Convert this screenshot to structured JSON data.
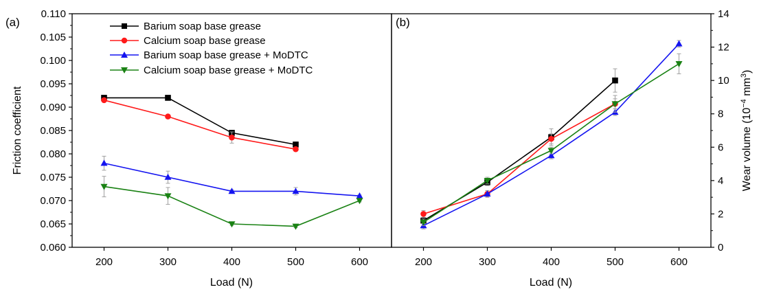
{
  "colors": {
    "barium": "#000000",
    "calcium": "#ff1a1a",
    "barium_modtc": "#1414f0",
    "calcium_modtc": "#1a8214",
    "errorbar": "#a0a0a0",
    "axis": "#000000"
  },
  "chart_data": [
    {
      "panel": "(a)",
      "type": "line",
      "xlabel": "Load (N)",
      "ylabel": "Friction coefficient",
      "xlim": [
        150,
        650
      ],
      "ylim": [
        0.06,
        0.11
      ],
      "xticks": [
        "200",
        "300",
        "400",
        "500",
        "600"
      ],
      "yticks": [
        "0.060",
        "0.065",
        "0.070",
        "0.075",
        "0.080",
        "0.085",
        "0.090",
        "0.095",
        "0.100",
        "0.105",
        "0.110"
      ],
      "legend_position": "top",
      "series": [
        {
          "name": "Barium soap base grease",
          "color_key": "barium",
          "marker": "square",
          "x": [
            200,
            300,
            400,
            500
          ],
          "y": [
            0.092,
            0.092,
            0.0845,
            0.082
          ],
          "err": [
            0.0003,
            0.0003,
            0.0004,
            0.0004
          ]
        },
        {
          "name": "Calcium soap base grease",
          "color_key": "calcium",
          "marker": "circle",
          "x": [
            200,
            300,
            400,
            500
          ],
          "y": [
            0.0915,
            0.088,
            0.0835,
            0.081
          ],
          "err": [
            0.0003,
            0.0003,
            0.0012,
            0.0003
          ]
        },
        {
          "name": "Barium soap base grease + MoDTC",
          "color_key": "barium_modtc",
          "marker": "triangle-up",
          "x": [
            200,
            300,
            400,
            500,
            600
          ],
          "y": [
            0.078,
            0.075,
            0.072,
            0.072,
            0.071
          ],
          "err": [
            0.0015,
            0.0013,
            0.0003,
            0.0008,
            0.0002
          ]
        },
        {
          "name": "Calcium soap base grease + MoDTC",
          "color_key": "calcium_modtc",
          "marker": "triangle-down",
          "x": [
            200,
            300,
            400,
            500,
            600
          ],
          "y": [
            0.073,
            0.071,
            0.065,
            0.0645,
            0.07
          ],
          "err": [
            0.0022,
            0.0018,
            0.0003,
            0.0003,
            0.0003
          ]
        }
      ]
    },
    {
      "panel": "(b)",
      "type": "line",
      "xlabel": "Load (N)",
      "ylabel": "Wear volume (10",
      "ylabel_sup": "−4",
      "ylabel_unit": " mm",
      "ylabel_unit_sup": "3",
      "ylabel_close": ")",
      "xlim": [
        150,
        650
      ],
      "ylim": [
        0,
        14
      ],
      "xticks": [
        "200",
        "300",
        "400",
        "500",
        "600"
      ],
      "yticks": [
        "0",
        "2",
        "4",
        "6",
        "8",
        "10",
        "12",
        "14"
      ],
      "series": [
        {
          "name": "Barium soap base grease",
          "color_key": "barium",
          "marker": "square",
          "x": [
            200,
            300,
            400,
            500
          ],
          "y": [
            1.6,
            3.9,
            6.6,
            10.0
          ],
          "err": [
            0.3,
            0.2,
            0.5,
            0.7
          ]
        },
        {
          "name": "Calcium soap base grease",
          "color_key": "calcium",
          "marker": "circle",
          "x": [
            200,
            300,
            400,
            500
          ],
          "y": [
            2.0,
            3.2,
            6.5,
            8.6
          ],
          "err": [
            0.2,
            0.2,
            0.3,
            0.3
          ]
        },
        {
          "name": "Barium soap base grease + MoDTC",
          "color_key": "barium_modtc",
          "marker": "triangle-up",
          "x": [
            200,
            300,
            400,
            500,
            600
          ],
          "y": [
            1.3,
            3.2,
            5.5,
            8.1,
            12.2
          ],
          "err": [
            0.2,
            0.2,
            0.2,
            0.2,
            0.2
          ]
        },
        {
          "name": "Calcium soap base grease + MoDTC",
          "color_key": "calcium_modtc",
          "marker": "triangle-down",
          "x": [
            200,
            300,
            400,
            500,
            600
          ],
          "y": [
            1.5,
            4.0,
            5.8,
            8.6,
            11.0
          ],
          "err": [
            0.2,
            0.2,
            0.2,
            0.5,
            0.6
          ]
        }
      ]
    }
  ]
}
